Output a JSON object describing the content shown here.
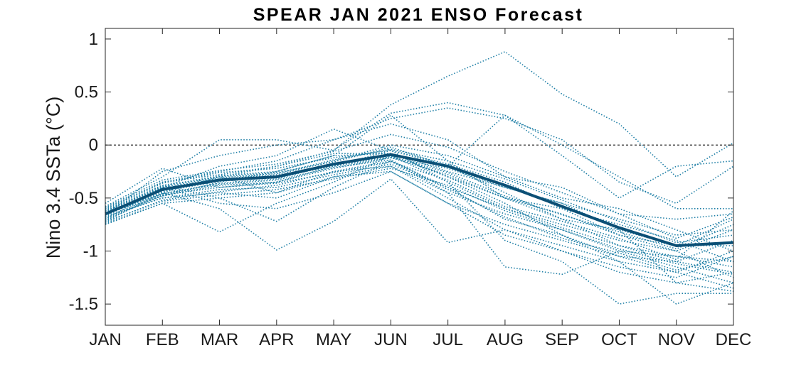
{
  "chart_data": {
    "type": "line",
    "title": "SPEAR JAN 2021 ENSO Forecast",
    "xlabel": "",
    "ylabel": "Nino 3.4 SSTa (°C)",
    "categories": [
      "JAN",
      "FEB",
      "MAR",
      "APR",
      "MAY",
      "JUN",
      "JUL",
      "AUG",
      "SEP",
      "OCT",
      "NOV",
      "DEC"
    ],
    "ylim": [
      -1.7,
      1.1
    ],
    "yticks": [
      "1",
      "0.5",
      "0",
      "-0.5",
      "-1",
      "-1.5"
    ],
    "ytick_values": [
      1,
      0.5,
      0,
      -0.5,
      -1,
      -1.5
    ],
    "reference_line": 0,
    "colors": {
      "members": "#1f7fa6",
      "mean": "#0b4f75",
      "reference": "#222222"
    },
    "ensemble_mean": [
      -0.65,
      -0.42,
      -0.33,
      -0.3,
      -0.18,
      -0.09,
      -0.2,
      -0.38,
      -0.58,
      -0.78,
      -0.95,
      -0.92
    ],
    "members": [
      [
        -0.62,
        -0.38,
        -0.3,
        -0.2,
        -0.05,
        0.38,
        0.65,
        0.88,
        0.48,
        0.2,
        -0.3,
        0.02
      ],
      [
        -0.58,
        -0.3,
        0.05,
        0.05,
        -0.05,
        0.3,
        0.4,
        0.28,
        -0.1,
        -0.5,
        -0.2,
        -0.15
      ],
      [
        -0.66,
        -0.25,
        -0.1,
        0.0,
        0.05,
        0.25,
        0.35,
        0.25,
        0.05,
        -0.35,
        -0.55,
        -0.2
      ],
      [
        -0.7,
        -0.4,
        -0.2,
        -0.1,
        0.15,
        -0.05,
        -0.2,
        0.28,
        0.0,
        -0.3,
        -0.6,
        -0.6
      ],
      [
        -0.6,
        -0.35,
        -0.25,
        -0.15,
        0.05,
        0.2,
        0.05,
        -0.3,
        -0.4,
        -0.65,
        -0.7,
        -0.65
      ],
      [
        -0.65,
        -0.48,
        -0.35,
        -0.25,
        -0.1,
        0.28,
        -0.15,
        -0.5,
        -0.7,
        -0.8,
        -0.95,
        -0.7
      ],
      [
        -0.55,
        -0.22,
        -0.4,
        -0.35,
        -0.2,
        -0.05,
        -0.35,
        -0.6,
        -0.75,
        -0.9,
        -1.0,
        -0.8
      ],
      [
        -0.72,
        -0.45,
        -0.3,
        -0.45,
        -0.25,
        -0.15,
        -0.4,
        -0.7,
        -0.85,
        -1.05,
        -1.1,
        -0.9
      ],
      [
        -0.68,
        -0.5,
        -0.45,
        -0.5,
        -0.3,
        -0.2,
        -0.5,
        -0.8,
        -0.95,
        -1.1,
        -1.2,
        -1.0
      ],
      [
        -0.63,
        -0.4,
        -0.55,
        -0.6,
        -0.45,
        -0.25,
        -0.55,
        -0.85,
        -1.0,
        -1.15,
        -1.25,
        -1.05
      ],
      [
        -0.75,
        -0.55,
        -0.82,
        -0.55,
        -0.35,
        -0.1,
        -0.3,
        -0.5,
        -0.6,
        -0.75,
        -0.9,
        -1.1
      ],
      [
        -0.62,
        -0.38,
        -0.5,
        -0.72,
        -0.4,
        -0.15,
        -0.45,
        -0.65,
        -0.8,
        -1.0,
        -1.05,
        -1.15
      ],
      [
        -0.66,
        -0.45,
        -0.6,
        -0.99,
        -0.72,
        -0.32,
        -0.92,
        -0.8,
        -1.0,
        -1.2,
        -1.3,
        -1.2
      ],
      [
        -0.6,
        -0.35,
        -0.28,
        -0.2,
        -0.08,
        -0.08,
        -0.25,
        -0.4,
        -0.55,
        -0.7,
        -0.85,
        -0.8
      ],
      [
        -0.7,
        -0.48,
        -0.38,
        -0.35,
        -0.22,
        -0.12,
        -0.28,
        -0.5,
        -0.65,
        -0.85,
        -0.95,
        -0.95
      ],
      [
        -0.64,
        -0.42,
        -0.32,
        -0.28,
        -0.15,
        0.0,
        -0.1,
        -0.3,
        -0.5,
        -0.6,
        -0.8,
        -1.0
      ],
      [
        -0.67,
        -0.5,
        -0.42,
        -0.4,
        -0.28,
        -0.18,
        -0.4,
        -0.6,
        -0.78,
        -0.95,
        -1.05,
        -1.1
      ],
      [
        -0.61,
        -0.36,
        -0.26,
        -0.22,
        -0.12,
        -0.05,
        -0.18,
        -0.35,
        -0.6,
        -0.85,
        -1.0,
        -1.25
      ],
      [
        -0.73,
        -0.52,
        -0.44,
        -0.38,
        -0.25,
        -0.2,
        -0.45,
        -1.15,
        -1.22,
        -1.0,
        -1.15,
        -1.3
      ],
      [
        -0.69,
        -0.46,
        -0.36,
        -0.32,
        -0.18,
        -0.1,
        -0.35,
        -0.9,
        -1.1,
        -1.5,
        -1.4,
        -1.4
      ],
      [
        -0.62,
        -0.4,
        -0.3,
        -0.26,
        -0.16,
        -0.02,
        -0.2,
        -0.45,
        -0.7,
        -0.95,
        -1.1,
        -1.2
      ],
      [
        -0.74,
        -0.55,
        -0.5,
        -0.45,
        -0.3,
        -0.25,
        -0.55,
        -0.75,
        -0.9,
        -1.05,
        -1.2,
        -1.35
      ],
      [
        -0.66,
        -0.43,
        -0.33,
        -0.3,
        -0.2,
        -0.12,
        -0.22,
        -0.4,
        -0.55,
        -0.8,
        -1.3,
        -1.38
      ],
      [
        -0.63,
        -0.39,
        -0.29,
        -0.25,
        -0.1,
        -0.08,
        -0.3,
        -0.55,
        -0.85,
        -1.1,
        -1.5,
        -1.3
      ],
      [
        -0.71,
        -0.47,
        -0.4,
        -0.36,
        -0.26,
        -0.16,
        -0.33,
        -0.58,
        -0.72,
        -0.88,
        -1.08,
        -0.62
      ],
      [
        -0.65,
        -0.44,
        -0.34,
        -0.31,
        -0.19,
        -0.11,
        -0.26,
        -0.48,
        -0.66,
        -0.82,
        -0.98,
        -0.75
      ],
      [
        -0.59,
        -0.33,
        -0.24,
        -0.18,
        -0.06,
        0.1,
        -0.02,
        -0.25,
        -0.45,
        -0.65,
        -0.88,
        -0.68
      ],
      [
        -0.72,
        -0.53,
        -0.47,
        -0.42,
        -0.32,
        -0.22,
        -0.38,
        -0.62,
        -0.8,
        -0.98,
        -1.12,
        -1.22
      ],
      [
        -0.67,
        -0.41,
        -0.31,
        -0.27,
        -0.14,
        -0.04,
        -0.15,
        -0.32,
        -0.52,
        -0.72,
        -0.92,
        -0.85
      ],
      [
        -0.64,
        -0.46,
        -0.37,
        -0.33,
        -0.21,
        -0.14,
        -0.42,
        -0.68,
        -0.88,
        -1.02,
        -1.18,
        -1.05
      ]
    ]
  }
}
